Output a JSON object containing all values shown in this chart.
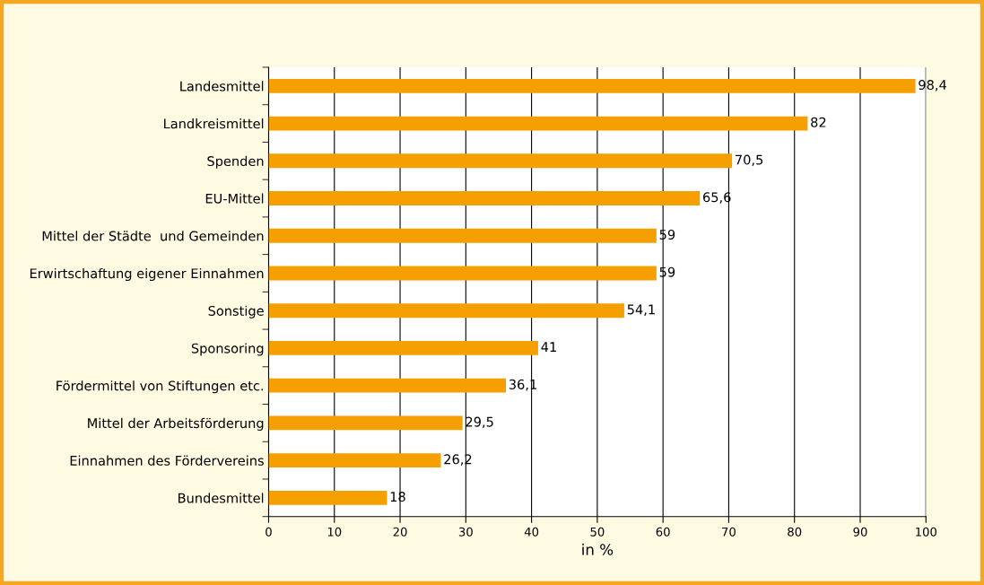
{
  "chart_data": {
    "type": "bar",
    "orientation": "horizontal",
    "categories": [
      "Landesmittel",
      "Landkreismittel",
      "Spenden",
      "EU-Mittel",
      "Mittel der Städte  und Gemeinden",
      "Erwirtschaftung eigener Einnahmen",
      "Sonstige",
      "Sponsoring",
      "Fördermittel von Stiftungen etc.",
      "Mittel der Arbeitsförderung",
      "Einnahmen des Fördervereins",
      "Bundesmittel"
    ],
    "values": [
      98.4,
      82,
      70.5,
      65.6,
      59,
      59,
      54.1,
      41,
      36.1,
      29.5,
      26.2,
      18
    ],
    "value_labels": [
      "98,4",
      "82",
      "70,5",
      "65,6",
      "59",
      "59",
      "54,1",
      "41",
      "36,1",
      "29,5",
      "26,2",
      "18"
    ],
    "color": "#f5a000",
    "xlim": [
      0,
      100
    ],
    "xticks": [
      0,
      10,
      20,
      30,
      40,
      50,
      60,
      70,
      80,
      90,
      100
    ],
    "xlabel": "in %",
    "grid": "x",
    "legend": false
  }
}
